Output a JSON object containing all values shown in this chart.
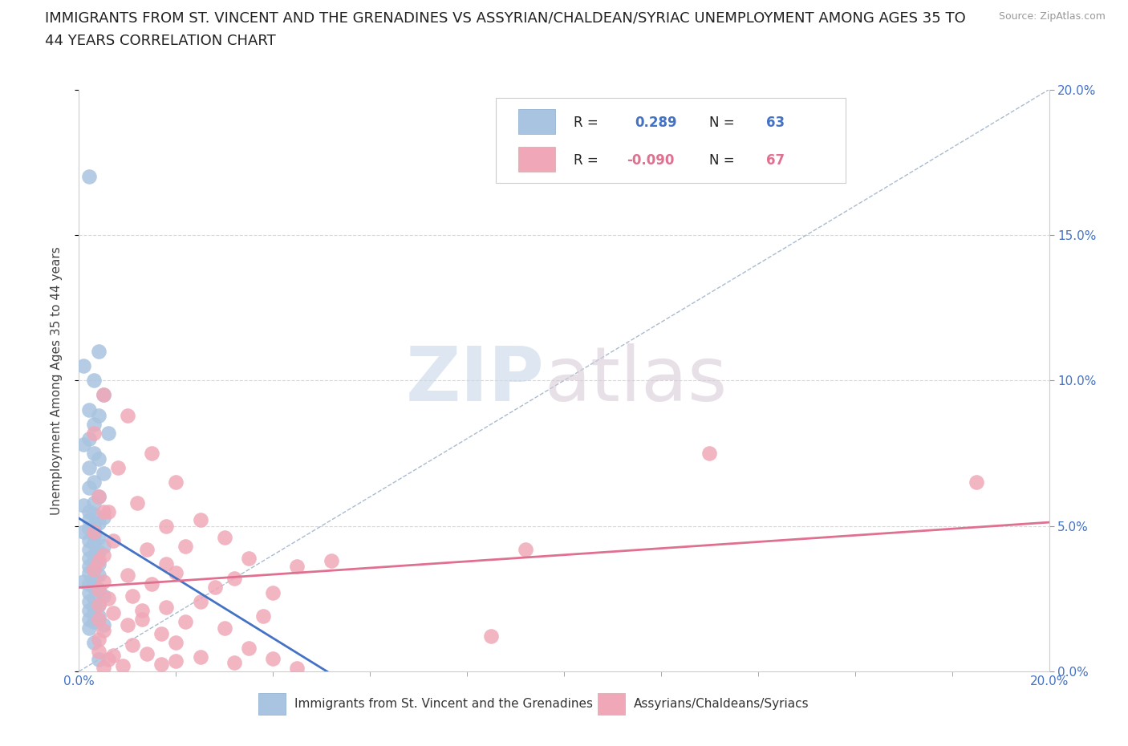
{
  "title_line1": "IMMIGRANTS FROM ST. VINCENT AND THE GRENADINES VS ASSYRIAN/CHALDEAN/SYRIAC UNEMPLOYMENT AMONG AGES 35 TO",
  "title_line2": "44 YEARS CORRELATION CHART",
  "source_text": "Source: ZipAtlas.com",
  "ylabel_label": "Unemployment Among Ages 35 to 44 years",
  "legend1_label": "Immigrants from St. Vincent and the Grenadines",
  "legend2_label": "Assyrians/Chaldeans/Syriacs",
  "R1": 0.289,
  "N1": 63,
  "R2": -0.09,
  "N2": 67,
  "blue_color": "#a8c4e0",
  "pink_color": "#f0a8b8",
  "blue_line_color": "#4472c4",
  "pink_line_color": "#e07090",
  "ref_line_color": "#aabbd0",
  "grid_color": "#d8d8d8",
  "title_fontsize": 13,
  "source_fontsize": 9,
  "blue_scatter_x": [
    0.2,
    0.4,
    0.1,
    0.3,
    0.5,
    0.2,
    0.4,
    0.3,
    0.6,
    0.2,
    0.1,
    0.3,
    0.4,
    0.2,
    0.5,
    0.3,
    0.2,
    0.4,
    0.3,
    0.1,
    0.2,
    0.3,
    0.5,
    0.2,
    0.4,
    0.3,
    0.2,
    0.1,
    0.3,
    0.4,
    0.2,
    0.3,
    0.5,
    0.2,
    0.4,
    0.3,
    0.2,
    0.3,
    0.4,
    0.2,
    0.3,
    0.2,
    0.4,
    0.3,
    0.1,
    0.2,
    0.3,
    0.4,
    0.2,
    0.5,
    0.3,
    0.2,
    0.4,
    0.3,
    0.2,
    0.3,
    0.4,
    0.2,
    0.3,
    0.5,
    0.2,
    0.3,
    0.4
  ],
  "blue_scatter_y": [
    17.0,
    11.0,
    10.5,
    10.0,
    9.5,
    9.0,
    8.8,
    8.5,
    8.2,
    8.0,
    7.8,
    7.5,
    7.3,
    7.0,
    6.8,
    6.5,
    6.3,
    6.0,
    5.8,
    5.7,
    5.5,
    5.4,
    5.3,
    5.2,
    5.1,
    5.0,
    4.9,
    4.8,
    4.7,
    4.6,
    4.5,
    4.4,
    4.3,
    4.2,
    4.1,
    4.0,
    3.9,
    3.8,
    3.7,
    3.6,
    3.5,
    3.4,
    3.3,
    3.2,
    3.1,
    3.0,
    2.9,
    2.8,
    2.7,
    2.6,
    2.5,
    2.4,
    2.3,
    2.2,
    2.1,
    2.0,
    1.9,
    1.8,
    1.7,
    1.6,
    1.5,
    1.0,
    0.4
  ],
  "pink_scatter_x": [
    0.5,
    1.0,
    0.3,
    1.5,
    0.8,
    2.0,
    0.4,
    1.2,
    0.6,
    2.5,
    1.8,
    0.3,
    3.0,
    0.7,
    2.2,
    1.4,
    0.5,
    3.5,
    0.4,
    1.8,
    4.5,
    0.3,
    2.0,
    1.0,
    3.2,
    0.5,
    1.5,
    2.8,
    0.4,
    4.0,
    1.1,
    0.6,
    2.5,
    0.4,
    1.8,
    1.3,
    0.7,
    3.8,
    0.4,
    2.2,
    1.0,
    3.0,
    0.5,
    1.7,
    8.5,
    0.4,
    2.0,
    1.1,
    3.5,
    0.4,
    1.4,
    2.5,
    0.6,
    3.2,
    0.9,
    4.5,
    0.5,
    1.7,
    2.0,
    4.0,
    0.7,
    5.2,
    1.3,
    9.2,
    13.0,
    18.5,
    0.5
  ],
  "pink_scatter_y": [
    9.5,
    8.8,
    8.2,
    7.5,
    7.0,
    6.5,
    6.0,
    5.8,
    5.5,
    5.2,
    5.0,
    4.8,
    4.6,
    4.5,
    4.3,
    4.2,
    4.0,
    3.9,
    3.8,
    3.7,
    3.6,
    3.5,
    3.4,
    3.3,
    3.2,
    3.1,
    3.0,
    2.9,
    2.8,
    2.7,
    2.6,
    2.5,
    2.4,
    2.3,
    2.2,
    2.1,
    2.0,
    1.9,
    1.8,
    1.7,
    1.6,
    1.5,
    1.4,
    1.3,
    1.2,
    1.1,
    1.0,
    0.9,
    0.8,
    0.7,
    0.6,
    0.5,
    0.4,
    0.3,
    0.2,
    0.1,
    0.15,
    0.25,
    0.35,
    0.45,
    0.55,
    3.8,
    1.8,
    4.2,
    7.5,
    6.5,
    5.5
  ]
}
